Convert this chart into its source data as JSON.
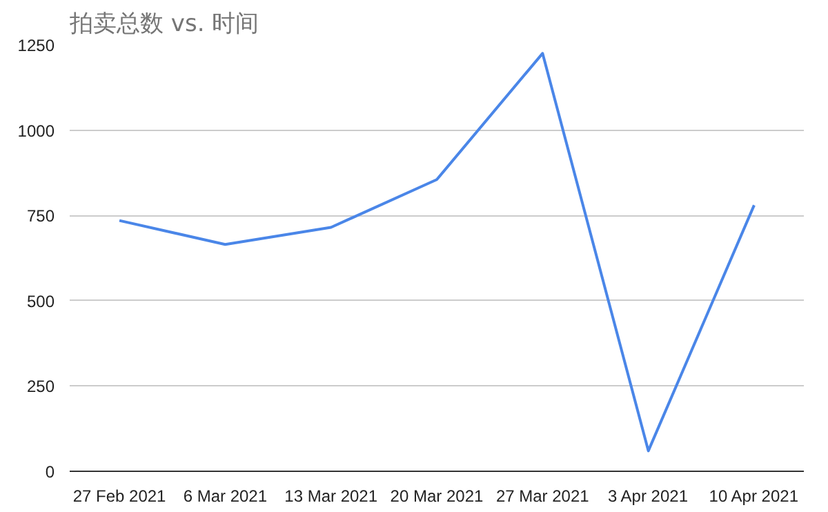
{
  "chart_data": {
    "type": "line",
    "title": "拍卖总数 vs. 时间",
    "categories": [
      "27 Feb 2021",
      "6 Mar 2021",
      "13 Mar 2021",
      "20 Mar 2021",
      "27 Mar 2021",
      "3 Apr 2021",
      "10 Apr 2021"
    ],
    "series": [
      {
        "color": "#4a86e8",
        "values": [
          735,
          665,
          715,
          855,
          1225,
          60,
          780
        ]
      }
    ],
    "ylim": [
      0,
      1250
    ],
    "yticks": [
      0,
      250,
      500,
      750,
      1000,
      1250
    ],
    "grid": "y",
    "marker": "none",
    "line_style": "solid"
  }
}
